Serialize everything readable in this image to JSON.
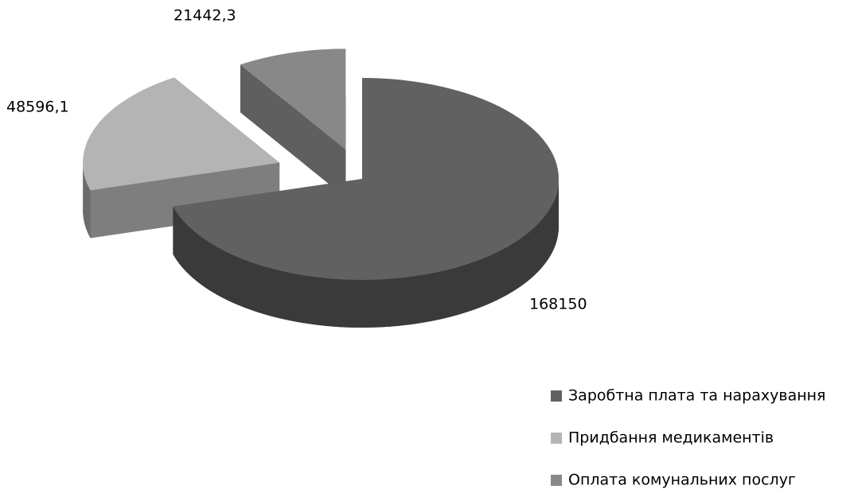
{
  "chart_data": {
    "type": "pie3d",
    "categories": [
      "Заробтна плата та нарахування",
      "Придбання медикаментів",
      "Оплата комунальних послуг"
    ],
    "values": [
      168150,
      48596.1,
      21442.3
    ],
    "value_labels": [
      "168150",
      "48596,1",
      "21442,3"
    ],
    "colors": [
      "#616161",
      "#b4b4b4",
      "#888888"
    ],
    "legend": "right-bottom"
  }
}
